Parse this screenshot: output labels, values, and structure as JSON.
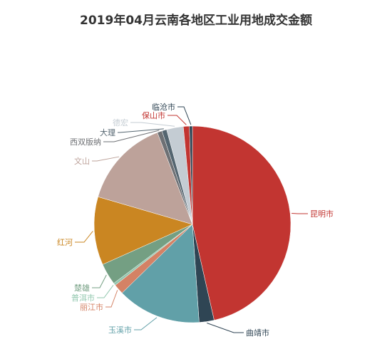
{
  "chart_data": {
    "type": "pie",
    "title": "2019年04月云南各地区工业用地成交金额",
    "slices": [
      {
        "name": "昆明市",
        "value": 47.2,
        "color": "#c23531"
      },
      {
        "name": "曲靖市",
        "value": 2.5,
        "color": "#2f4554"
      },
      {
        "name": "玉溪市",
        "value": 14.0,
        "color": "#61a0a8"
      },
      {
        "name": "丽江市",
        "value": 1.7,
        "color": "#d48265"
      },
      {
        "name": "普洱市",
        "value": 0.4,
        "color": "#91c7ae"
      },
      {
        "name": "楚雄",
        "value": 3.6,
        "color": "#749f83"
      },
      {
        "name": "红河",
        "value": 11.4,
        "color": "#ca8622"
      },
      {
        "name": "文山",
        "value": 14.9,
        "color": "#bda29a"
      },
      {
        "name": "西双版纳",
        "value": 0.8,
        "color": "#6e7074"
      },
      {
        "name": "大理",
        "value": 0.8,
        "color": "#546570"
      },
      {
        "name": "德宏",
        "value": 2.8,
        "color": "#c4ccd3"
      },
      {
        "name": "保山市",
        "value": 1.0,
        "color": "#c23531"
      },
      {
        "name": "临沧市",
        "value": 0.5,
        "color": "#2f4554"
      }
    ]
  }
}
